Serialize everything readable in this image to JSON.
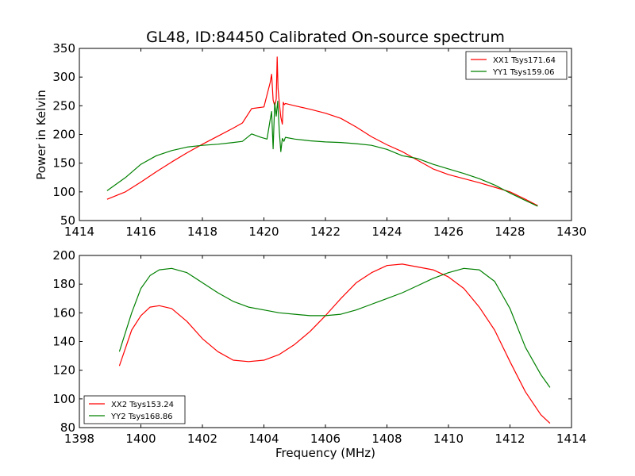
{
  "colors": {
    "red": "#ff0000",
    "green": "#008000"
  },
  "chart_data": [
    {
      "type": "line",
      "title": "GL48, ID:84450 Calibrated On-source spectrum",
      "xlabel": "",
      "ylabel": "Power in Kelvin",
      "xlim": [
        1414,
        1430
      ],
      "ylim": [
        50,
        350
      ],
      "xticks": [
        1414,
        1416,
        1418,
        1420,
        1422,
        1424,
        1426,
        1428,
        1430
      ],
      "yticks": [
        50,
        100,
        150,
        200,
        250,
        300,
        350
      ],
      "grid": false,
      "legend_position": "top-right",
      "series": [
        {
          "name": "XX1 Tsys171.64",
          "color": "#ff0000",
          "x": [
            1414.9,
            1415.5,
            1416,
            1416.5,
            1417,
            1417.5,
            1418,
            1418.5,
            1419,
            1419.3,
            1419.6,
            1420,
            1420.2,
            1420.25,
            1420.3,
            1420.35,
            1420.4,
            1420.43,
            1420.46,
            1420.5,
            1420.55,
            1420.6,
            1420.63,
            1420.66,
            1420.7,
            1421,
            1421.5,
            1422,
            1422.5,
            1423,
            1423.5,
            1424,
            1424.5,
            1425,
            1425.5,
            1426,
            1426.5,
            1427,
            1427.5,
            1428,
            1428.5,
            1428.9
          ],
          "y": [
            87,
            100,
            117,
            135,
            152,
            168,
            183,
            197,
            211,
            220,
            245,
            248,
            290,
            305,
            260,
            250,
            262,
            335,
            280,
            255,
            230,
            218,
            256,
            252,
            254,
            250,
            244,
            237,
            228,
            213,
            196,
            182,
            170,
            155,
            140,
            130,
            123,
            116,
            108,
            100,
            87,
            76
          ]
        },
        {
          "name": "YY1 Tsys159.06",
          "color": "#008000",
          "x": [
            1414.9,
            1415.5,
            1416,
            1416.5,
            1417,
            1417.5,
            1418,
            1418.5,
            1419,
            1419.3,
            1419.6,
            1419.9,
            1420.1,
            1420.2,
            1420.25,
            1420.3,
            1420.35,
            1420.4,
            1420.45,
            1420.5,
            1420.55,
            1420.6,
            1420.65,
            1420.7,
            1421,
            1421.5,
            1422,
            1422.5,
            1423,
            1423.5,
            1424,
            1424.5,
            1425,
            1425.5,
            1426,
            1426.5,
            1427,
            1427.5,
            1428,
            1428.5,
            1428.9
          ],
          "y": [
            102,
            125,
            148,
            163,
            172,
            178,
            181,
            183,
            186,
            188,
            201,
            195,
            192,
            225,
            240,
            175,
            255,
            232,
            258,
            205,
            170,
            193,
            188,
            195,
            192,
            189,
            187,
            186,
            184,
            181,
            174,
            163,
            158,
            148,
            140,
            132,
            123,
            112,
            98,
            85,
            75
          ]
        }
      ]
    },
    {
      "type": "line",
      "title": "",
      "xlabel": "Frequency (MHz)",
      "ylabel": "",
      "xlim": [
        1398,
        1414
      ],
      "ylim": [
        80,
        200
      ],
      "xticks": [
        1398,
        1400,
        1402,
        1404,
        1406,
        1408,
        1410,
        1412,
        1414
      ],
      "yticks": [
        80,
        100,
        120,
        140,
        160,
        180,
        200
      ],
      "grid": false,
      "legend_position": "bottom-left",
      "series": [
        {
          "name": "XX2 Tsys153.24",
          "color": "#ff0000",
          "x": [
            1399.3,
            1399.7,
            1400,
            1400.3,
            1400.6,
            1401,
            1401.5,
            1402,
            1402.5,
            1403,
            1403.5,
            1404,
            1404.5,
            1405,
            1405.5,
            1406,
            1406.5,
            1407,
            1407.5,
            1408,
            1408.5,
            1409,
            1409.5,
            1410,
            1410.5,
            1411,
            1411.5,
            1412,
            1412.5,
            1413,
            1413.3
          ],
          "y": [
            123,
            148,
            158,
            164,
            165,
            163,
            154,
            142,
            133,
            127,
            126,
            127,
            131,
            138,
            147,
            158,
            170,
            181,
            188,
            193,
            194,
            192,
            190,
            185,
            177,
            164,
            148,
            126,
            105,
            89,
            83
          ]
        },
        {
          "name": "YY2 Tsys168.86",
          "color": "#008000",
          "x": [
            1399.3,
            1399.7,
            1400,
            1400.3,
            1400.6,
            1401,
            1401.5,
            1402,
            1402.5,
            1403,
            1403.5,
            1404,
            1404.5,
            1405,
            1405.5,
            1406,
            1406.5,
            1407,
            1407.5,
            1408,
            1408.5,
            1409,
            1409.5,
            1410,
            1410.5,
            1411,
            1411.5,
            1412,
            1412.5,
            1413,
            1413.3
          ],
          "y": [
            133,
            160,
            177,
            186,
            190,
            191,
            188,
            181,
            174,
            168,
            164,
            162,
            160,
            159,
            158,
            158,
            159,
            162,
            166,
            170,
            174,
            179,
            184,
            188,
            191,
            190,
            182,
            163,
            136,
            117,
            108
          ]
        }
      ]
    }
  ]
}
